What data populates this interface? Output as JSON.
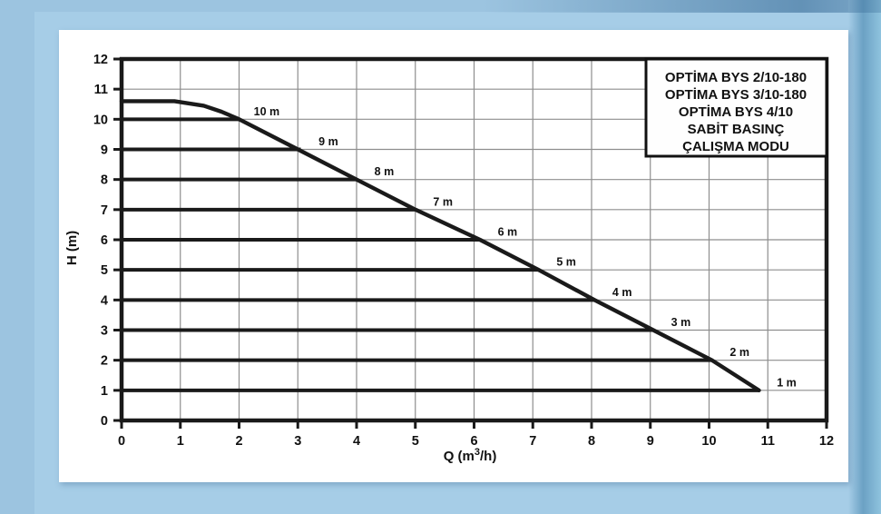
{
  "colors": {
    "background": "#9cc4e0",
    "background_inner": "#a6cde7",
    "background_edge_dark": "#6ba1c4",
    "background_edge_light": "#8fc3de",
    "panel": "#ffffff",
    "line": "#1a1a1a",
    "grid": "#8e8e8e",
    "text": "#111111"
  },
  "chart_data": {
    "type": "line",
    "title": "",
    "xlabel": "Q (m³/h)",
    "ylabel": "H (m)",
    "xlim": [
      0,
      12
    ],
    "ylim": [
      0,
      12
    ],
    "xticks": [
      0,
      1,
      2,
      3,
      4,
      5,
      6,
      7,
      8,
      9,
      10,
      11,
      12
    ],
    "yticks": [
      0,
      1,
      2,
      3,
      4,
      5,
      6,
      7,
      8,
      9,
      10,
      11,
      12
    ],
    "grid": true,
    "legend_position": "top-right",
    "legend": [
      "OPTİMA BYS 2/10-180",
      "OPTİMA BYS 3/10-180",
      "OPTİMA BYS 4/10",
      "SABİT BASINÇ",
      "ÇALIŞMA MODU"
    ],
    "series": [
      {
        "name": "pump-max-curve",
        "x": [
          0,
          0.9,
          1.4,
          1.7,
          2,
          3,
          4,
          5,
          6.1,
          7.1,
          8.05,
          9.05,
          10.05,
          10.85
        ],
        "y": [
          10.6,
          10.6,
          10.45,
          10.25,
          10,
          9,
          8,
          7,
          6,
          5,
          4,
          3,
          2,
          1
        ]
      }
    ],
    "pressure_lines": [
      {
        "label": "10 m",
        "h": 10,
        "q_end": 2.0
      },
      {
        "label": "9 m",
        "h": 9,
        "q_end": 3.05
      },
      {
        "label": "8 m",
        "h": 8,
        "q_end": 4.0
      },
      {
        "label": "7 m",
        "h": 7,
        "q_end": 5.0
      },
      {
        "label": "6 m",
        "h": 6,
        "q_end": 6.1
      },
      {
        "label": "5 m",
        "h": 5,
        "q_end": 7.1
      },
      {
        "label": "4 m",
        "h": 4,
        "q_end": 8.05
      },
      {
        "label": "3 m",
        "h": 3,
        "q_end": 9.05
      },
      {
        "label": "2 m",
        "h": 2,
        "q_end": 10.05
      },
      {
        "label": "1 m",
        "h": 1,
        "q_end": 10.85
      }
    ]
  }
}
